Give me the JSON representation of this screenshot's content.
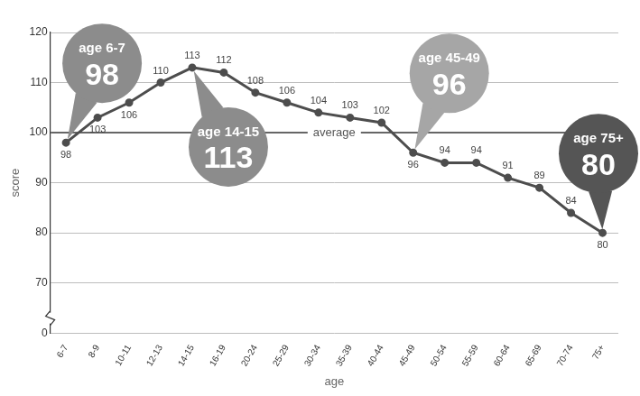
{
  "chart_data": {
    "type": "line",
    "categories": [
      "6-7",
      "8-9",
      "10-11",
      "12-13",
      "14-15",
      "16-19",
      "20-24",
      "25-29",
      "30-34",
      "35-39",
      "40-44",
      "45-49",
      "50-54",
      "55-59",
      "60-64",
      "65-69",
      "70-74",
      "75+"
    ],
    "values": [
      98,
      103,
      106,
      110,
      113,
      112,
      108,
      106,
      104,
      103,
      102,
      96,
      94,
      94,
      91,
      89,
      84,
      80
    ],
    "color": "#4d4d4d",
    "marker": "circle",
    "x_label": "age",
    "y_label": "score",
    "ylim": [
      0,
      120
    ],
    "yticks": [
      0,
      70,
      80,
      90,
      100,
      110,
      120
    ],
    "grid": true,
    "data_labels": true,
    "reference_line": {
      "value": 100,
      "label": "average"
    },
    "annotations": [
      {
        "category": "6-7",
        "text": "age 6-7",
        "value": 98,
        "color": "#8c8c8c"
      },
      {
        "category": "14-15",
        "text": "age 14-15",
        "value": 113,
        "color": "#8c8c8c"
      },
      {
        "category": "45-49",
        "text": "age 45-49",
        "value": 96,
        "color": "#a6a6a6"
      },
      {
        "category": "75+",
        "text": "age 75+",
        "value": 80,
        "color": "#555555"
      }
    ]
  }
}
